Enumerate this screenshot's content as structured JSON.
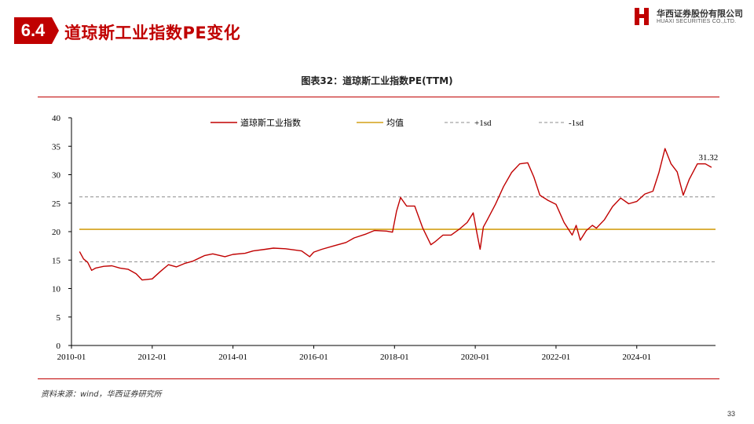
{
  "header": {
    "section_number": "6.4",
    "title": "道琼斯工业指数PE变化",
    "logo_cn": "华西证券股份有限公司",
    "logo_en": "HUAXI SECURITIES CO.,LTD."
  },
  "figure_title": "图表32：道琼斯工业指数PE(TTM)",
  "source": "资料来源：wind，华西证券研究所",
  "page_number": "33",
  "colors": {
    "accent": "#c00000",
    "pe_line": "#c00000",
    "mean_line": "#d4a017",
    "sd_line": "#8c8c8c"
  },
  "chart_data": {
    "type": "line",
    "title": "",
    "xlabel": "",
    "ylabel": "",
    "xlim": [
      2010.0,
      2025.95
    ],
    "ylim": [
      0,
      40
    ],
    "yticks": [
      0,
      5,
      10,
      15,
      20,
      25,
      30,
      35,
      40
    ],
    "x_tick_labels": [
      "2010-01",
      "2012-01",
      "2014-01",
      "2016-01",
      "2018-01",
      "2020-01",
      "2022-01",
      "2024-01"
    ],
    "x_tick_values": [
      2010,
      2012,
      2014,
      2016,
      2018,
      2020,
      2022,
      2024
    ],
    "grid": false,
    "legend_position": "top",
    "series": [
      {
        "name": "道琼斯工业指数",
        "style": "solid",
        "x": [
          2010.2,
          2010.3,
          2010.4,
          2010.5,
          2010.6,
          2010.8,
          2011.0,
          2011.2,
          2011.4,
          2011.6,
          2011.75,
          2012.0,
          2012.2,
          2012.4,
          2012.6,
          2012.8,
          2013.0,
          2013.3,
          2013.5,
          2013.8,
          2014.0,
          2014.3,
          2014.5,
          2014.8,
          2015.0,
          2015.3,
          2015.5,
          2015.7,
          2015.9,
          2016.0,
          2016.2,
          2016.5,
          2016.8,
          2017.0,
          2017.3,
          2017.5,
          2017.8,
          2017.95,
          2018.05,
          2018.15,
          2018.3,
          2018.5,
          2018.7,
          2018.9,
          2019.0,
          2019.2,
          2019.4,
          2019.6,
          2019.8,
          2019.95,
          2020.05,
          2020.12,
          2020.2,
          2020.3,
          2020.5,
          2020.7,
          2020.9,
          2021.1,
          2021.3,
          2021.45,
          2021.6,
          2021.8,
          2022.0,
          2022.2,
          2022.4,
          2022.5,
          2022.6,
          2022.75,
          2022.9,
          2023.0,
          2023.2,
          2023.4,
          2023.6,
          2023.8,
          2024.0,
          2024.2,
          2024.4,
          2024.55,
          2024.7,
          2024.85,
          2025.0,
          2025.15,
          2025.3,
          2025.5,
          2025.7,
          2025.85
        ],
        "y": [
          16.5,
          15.2,
          14.6,
          13.2,
          13.6,
          13.9,
          14.0,
          13.6,
          13.4,
          12.6,
          11.5,
          11.7,
          13.0,
          14.2,
          13.8,
          14.4,
          14.8,
          15.8,
          16.1,
          15.6,
          16.0,
          16.2,
          16.6,
          16.9,
          17.1,
          17.0,
          16.8,
          16.6,
          15.6,
          16.4,
          16.9,
          17.5,
          18.1,
          18.9,
          19.6,
          20.2,
          20.1,
          19.9,
          23.6,
          26.0,
          24.5,
          24.5,
          20.6,
          17.7,
          18.2,
          19.4,
          19.4,
          20.4,
          21.6,
          23.3,
          19.4,
          16.9,
          20.8,
          22.1,
          24.8,
          27.9,
          30.4,
          31.9,
          32.1,
          29.6,
          26.4,
          25.5,
          24.8,
          21.6,
          19.4,
          21.1,
          18.5,
          20.2,
          21.1,
          20.6,
          22.1,
          24.4,
          25.9,
          24.9,
          25.3,
          26.6,
          27.1,
          30.4,
          34.6,
          31.9,
          30.5,
          26.4,
          29.2,
          31.9,
          31.9,
          31.3
        ]
      },
      {
        "name": "均值",
        "style": "solid",
        "value": 20.4
      },
      {
        "name": "+1sd",
        "style": "dashed",
        "value": 26.1
      },
      {
        "name": "-1sd",
        "style": "dashed",
        "value": 14.7
      }
    ],
    "annotations": [
      {
        "text": "31.32",
        "x": 2025.85,
        "y": 31.32
      }
    ],
    "legend_labels": [
      "道琼斯工业指数",
      "均值",
      "+1sd",
      "-1sd"
    ]
  }
}
